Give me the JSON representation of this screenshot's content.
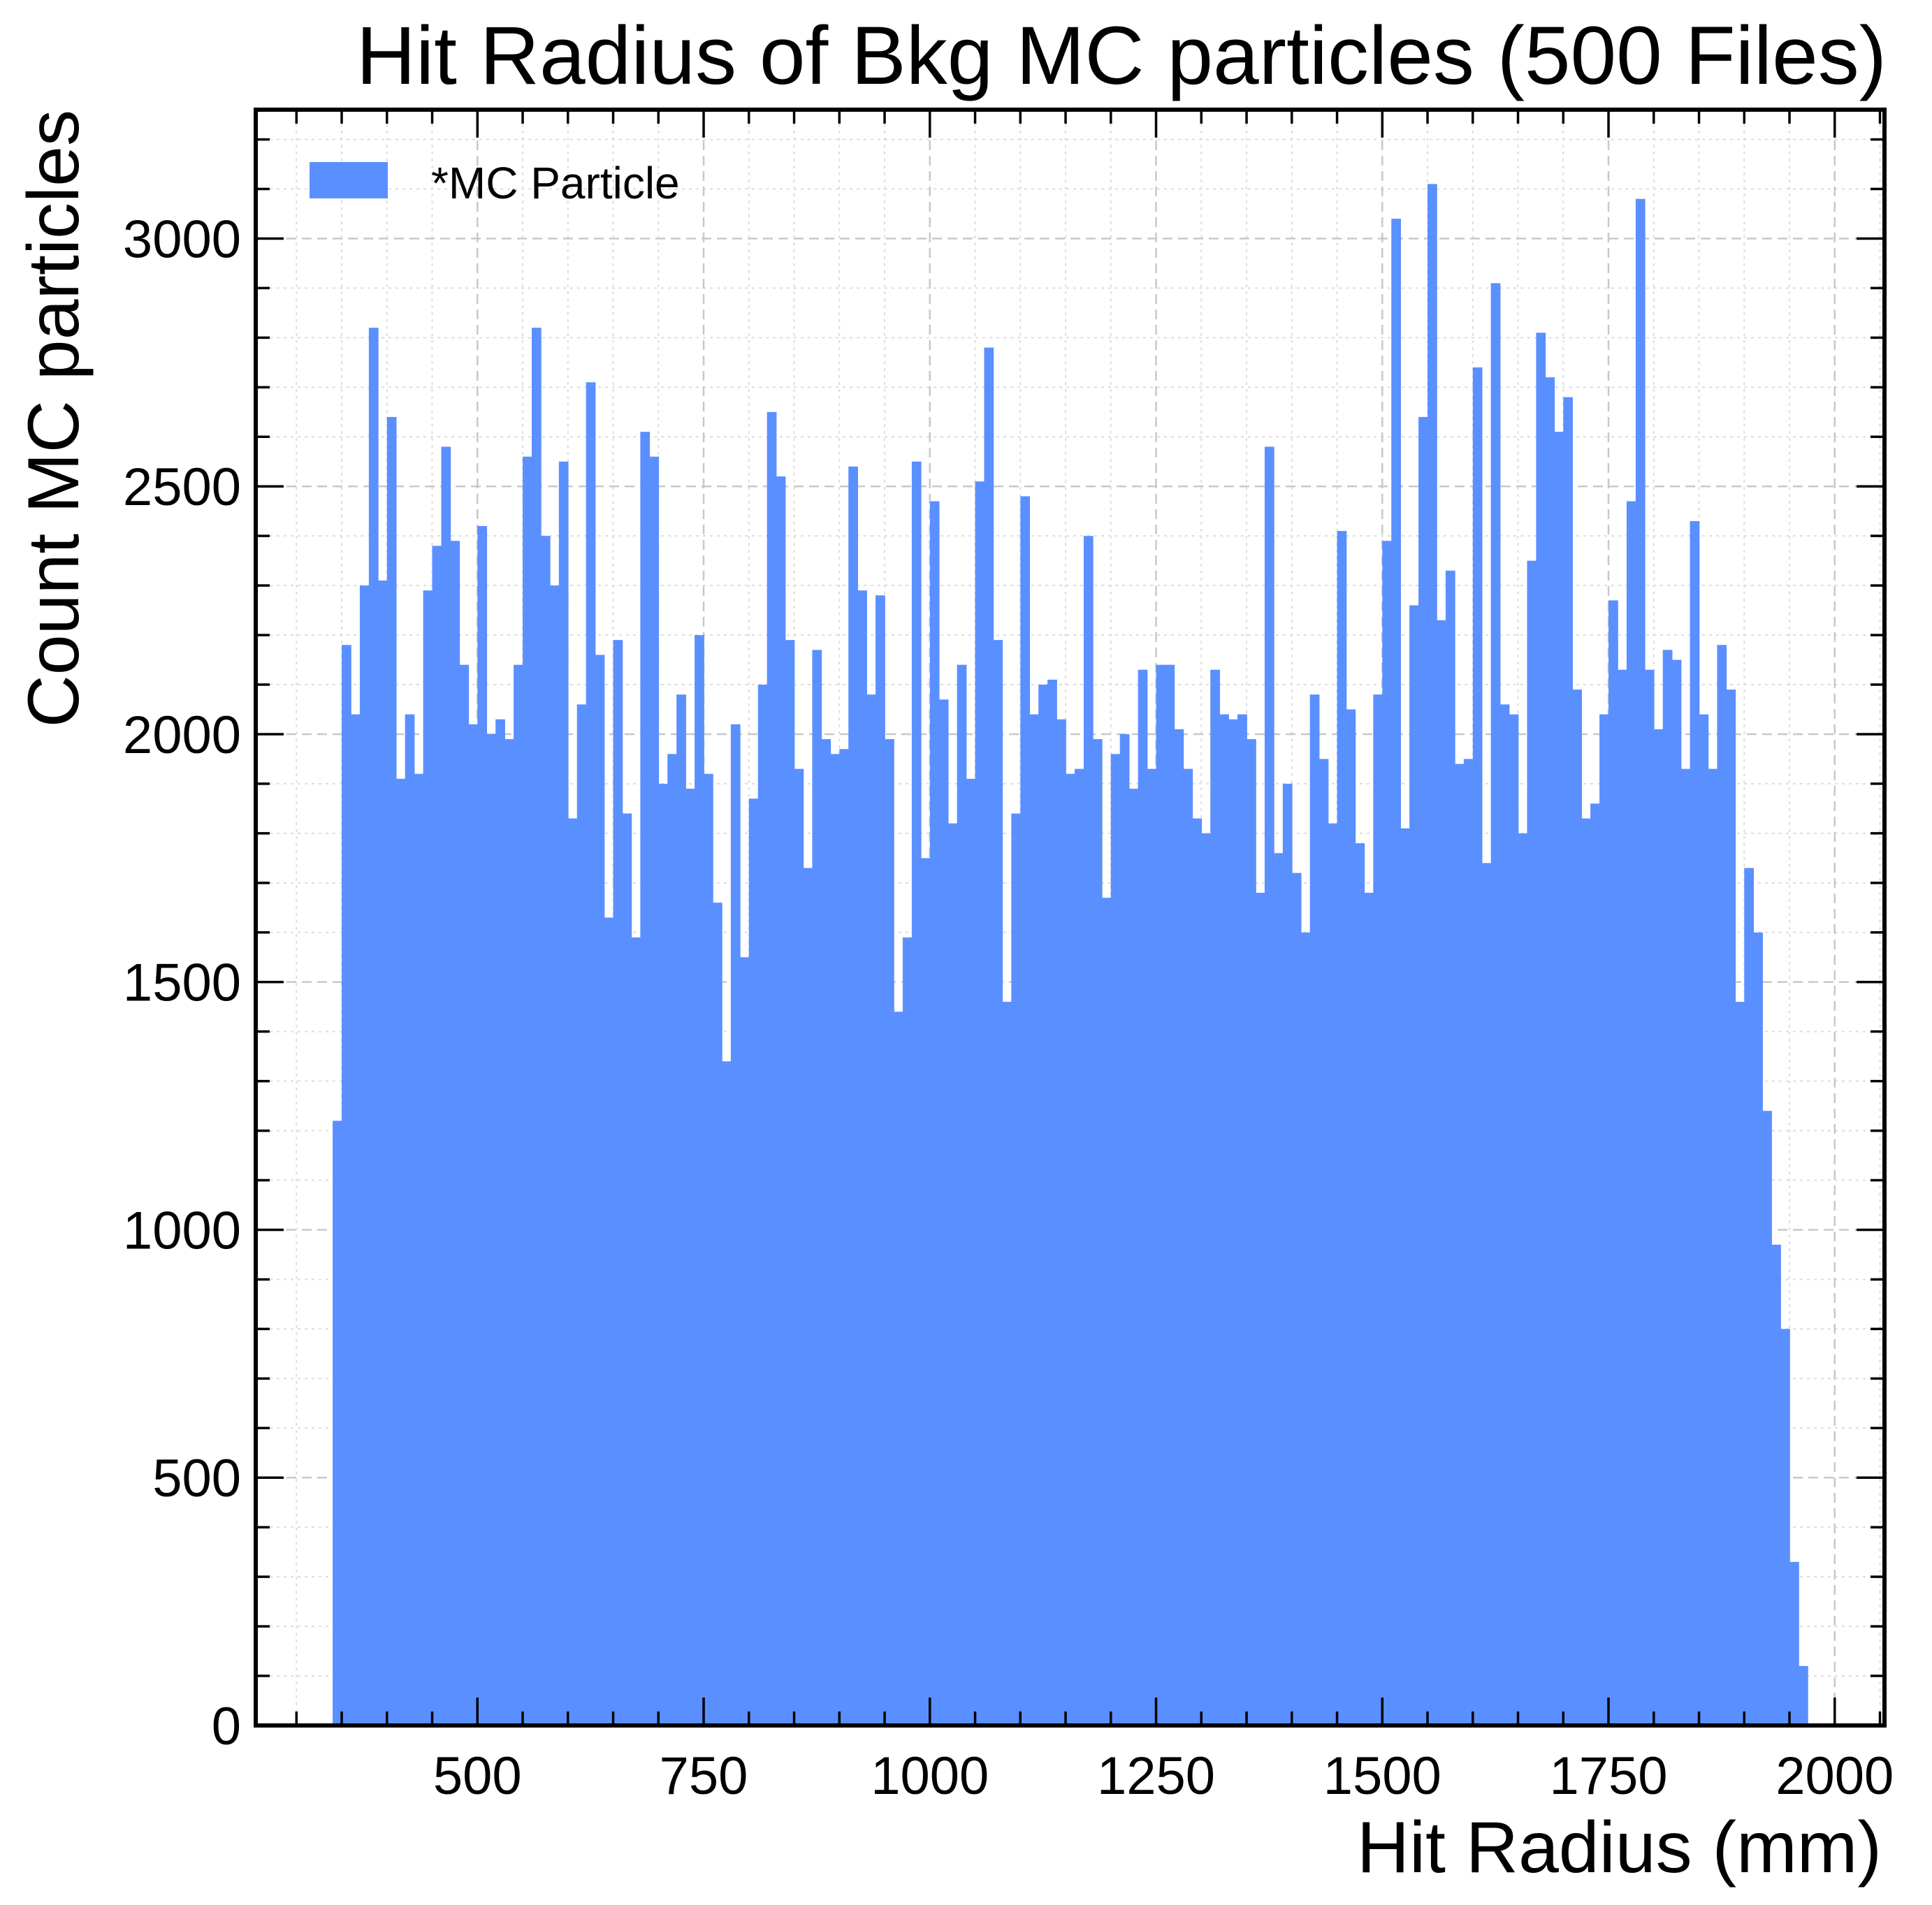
{
  "chart_data": {
    "type": "bar",
    "title": "Hit Radius of Bkg MC particles (500 Files)",
    "xlabel": "Hit Radius (mm)",
    "ylabel": "Count MC particles",
    "xlim": [
      255,
      2055
    ],
    "ylim": [
      0,
      3260
    ],
    "xticks": [
      500,
      750,
      1000,
      1250,
      1500,
      1750,
      2000
    ],
    "yticks": [
      0,
      500,
      1000,
      1500,
      2000,
      2500,
      3000
    ],
    "grid": true,
    "legend_placement": "top-left",
    "series": [
      {
        "name": "*MC Particle",
        "color": "#5a8fff",
        "bin_start": 340,
        "bin_width": 10,
        "values": [
          1220,
          2180,
          2040,
          2300,
          2820,
          2310,
          2640,
          1910,
          2040,
          1920,
          2290,
          2380,
          2580,
          2390,
          2140,
          2020,
          2420,
          2000,
          2030,
          1990,
          2140,
          2560,
          2820,
          2400,
          2300,
          2550,
          1830,
          2060,
          2710,
          2160,
          1630,
          2190,
          1840,
          1590,
          2610,
          2560,
          1900,
          1960,
          2080,
          1890,
          2200,
          1920,
          1660,
          1340,
          2020,
          1550,
          1870,
          2100,
          2650,
          2520,
          2190,
          1930,
          1730,
          2170,
          1990,
          1960,
          1970,
          2540,
          2290,
          2080,
          2280,
          1990,
          1440,
          1590,
          2550,
          1750,
          2470,
          2070,
          1820,
          2140,
          1910,
          2510,
          2780,
          2190,
          1460,
          1840,
          2480,
          2040,
          2100,
          2110,
          2030,
          1920,
          1930,
          2400,
          1990,
          1670,
          1960,
          2000,
          1890,
          2130,
          1930,
          2140,
          2140,
          2010,
          1930,
          1830,
          1800,
          2130,
          2040,
          2030,
          2040,
          1990,
          1680,
          2580,
          1760,
          1900,
          1720,
          1600,
          2080,
          1950,
          1820,
          2410,
          2050,
          1780,
          1680,
          2080,
          2390,
          3040,
          1810,
          2260,
          2640,
          3110,
          2230,
          2330,
          1940,
          1950,
          2740,
          1740,
          2910,
          2060,
          2040,
          1800,
          2350,
          2810,
          2720,
          2610,
          2680,
          2090,
          1830,
          1860,
          2040,
          2270,
          2130,
          2470,
          3080,
          2130,
          2010,
          2170,
          2150,
          1930,
          2430,
          2040,
          1930,
          2180,
          2090,
          1460,
          1730,
          1600,
          1240,
          970,
          800,
          330,
          120
        ]
      }
    ]
  }
}
